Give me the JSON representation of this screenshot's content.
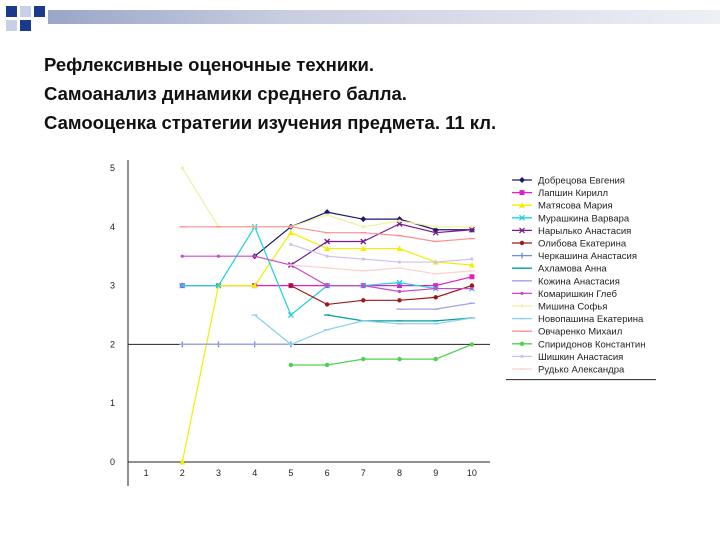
{
  "slide": {
    "title": "Рефлексивные оценочные техники.\n Самоанализ динамики среднего балла.\nСамооценка стратегии изучения предмета. 11 кл."
  },
  "chart_data": {
    "type": "line",
    "title": "",
    "xlabel": "",
    "ylabel": "",
    "x": [
      1,
      2,
      3,
      4,
      5,
      6,
      7,
      8,
      9,
      10
    ],
    "ylim": [
      0,
      5
    ],
    "yticks": [
      0,
      1,
      2,
      3,
      4,
      5
    ],
    "grid": false,
    "legend": "right",
    "series": [
      {
        "name": "Добрецова Евгения",
        "color": "#1a1a6e",
        "marker": "diamond",
        "values": [
          null,
          null,
          null,
          3.5,
          4.0,
          4.25,
          4.13,
          4.13,
          3.95,
          3.95
        ]
      },
      {
        "name": "Лапшин Кирилл",
        "color": "#e020c8",
        "marker": "square",
        "values": [
          null,
          3.0,
          3.0,
          3.0,
          3.0,
          3.0,
          3.0,
          3.0,
          3.0,
          3.15
        ]
      },
      {
        "name": "Матясова Мария",
        "color": "#f0f000",
        "marker": "triangle",
        "values": [
          null,
          0.0,
          3.0,
          3.0,
          3.9,
          3.63,
          3.63,
          3.63,
          3.4,
          3.35
        ]
      },
      {
        "name": "Мурашкина Варвара",
        "color": "#20d0e0",
        "marker": "x",
        "values": [
          null,
          3.0,
          3.0,
          4.0,
          2.5,
          3.0,
          3.0,
          3.05,
          2.95,
          2.95
        ]
      },
      {
        "name": "Нарылько Анастасия",
        "color": "#7a1a8e",
        "marker": "x",
        "values": [
          null,
          null,
          null,
          null,
          3.35,
          3.75,
          3.75,
          4.05,
          3.9,
          3.95
        ]
      },
      {
        "name": "Олибова Екатерина",
        "color": "#a01818",
        "marker": "circle",
        "values": [
          null,
          null,
          null,
          null,
          3.0,
          2.68,
          2.75,
          2.75,
          2.8,
          3.0
        ]
      },
      {
        "name": "Черкашина Анастасия",
        "color": "#6a8ee0",
        "marker": "bar",
        "values": [
          null,
          2.0,
          2.0,
          2.0,
          2.0,
          null,
          null,
          null,
          null,
          null
        ]
      },
      {
        "name": "Ахламова Анна",
        "color": "#00a0a0",
        "marker": "dash",
        "values": [
          null,
          null,
          null,
          null,
          null,
          2.5,
          2.4,
          2.4,
          2.4,
          2.45
        ]
      },
      {
        "name": "Кожина Анастасия",
        "color": "#a2a2e8",
        "marker": "dash",
        "values": [
          null,
          2.0,
          2.0,
          2.0,
          2.0,
          null,
          null,
          2.6,
          2.6,
          2.7
        ]
      },
      {
        "name": "Комаришкин Глеб",
        "color": "#c848c8",
        "marker": "dot",
        "values": [
          null,
          3.5,
          3.5,
          3.5,
          3.35,
          3.0,
          3.0,
          2.9,
          2.95,
          2.95
        ]
      },
      {
        "name": "Мишина Софья",
        "color": "#f0f0a0",
        "marker": "dot",
        "values": [
          null,
          5.0,
          4.0,
          4.0,
          4.0,
          4.2,
          4.0,
          4.1,
          4.0,
          4.0
        ]
      },
      {
        "name": "Новопашина Екатерина",
        "color": "#8ad0f0",
        "marker": "dash",
        "values": [
          null,
          null,
          null,
          2.5,
          2.0,
          2.25,
          2.4,
          2.35,
          2.35,
          2.45
        ]
      },
      {
        "name": "Овчаренко Михаил",
        "color": "#ff9090",
        "marker": "dash",
        "values": [
          null,
          4.0,
          4.0,
          4.0,
          4.0,
          3.9,
          3.9,
          3.85,
          3.75,
          3.8
        ]
      },
      {
        "name": "Спиридонов Константин",
        "color": "#50d050",
        "marker": "circle",
        "values": [
          null,
          null,
          null,
          null,
          1.65,
          1.65,
          1.75,
          1.75,
          1.75,
          2.0
        ]
      },
      {
        "name": "Шишкин Анастасия",
        "color": "#d0c0f0",
        "marker": "dot",
        "values": [
          null,
          null,
          null,
          null,
          3.7,
          3.5,
          3.45,
          3.4,
          3.4,
          3.45
        ]
      },
      {
        "name": "Рудько Александра",
        "color": "#ffd0d0",
        "marker": "dash",
        "values": [
          null,
          null,
          null,
          null,
          3.35,
          3.3,
          3.25,
          3.3,
          3.2,
          3.25
        ]
      }
    ]
  }
}
